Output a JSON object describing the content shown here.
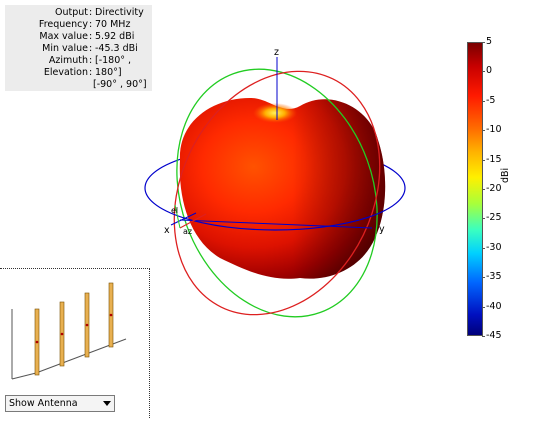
{
  "info": {
    "rows": [
      {
        "key": "Output",
        "value": "Directivity"
      },
      {
        "key": "Frequency",
        "value": "70 MHz"
      },
      {
        "key": "Max value",
        "value": "5.92 dBi"
      },
      {
        "key": "Min value",
        "value": "-45.3 dBi"
      },
      {
        "key": "Azimuth",
        "value": "[-180° ,"
      },
      {
        "key": "Elevation",
        "value": "180°]"
      }
    ],
    "continuation": "[-90° , 90°]"
  },
  "axes": {
    "x": "x",
    "y": "y",
    "z": "z",
    "az": "az",
    "el": "el"
  },
  "colorbar": {
    "unit": "dBi",
    "ticks": [
      "5",
      "0",
      "-5",
      "-10",
      "-15",
      "-20",
      "-25",
      "-30",
      "-35",
      "-40",
      "-45"
    ],
    "range": [
      -45,
      5
    ]
  },
  "antenna_view": {
    "dropdown_value": "Show Antenna"
  },
  "colors": {
    "pattern_max": "#ff2a00",
    "pattern_shadow": "#7a0000",
    "azimuth_ring": "#0000cc",
    "elevation_ring_green": "#22cc22",
    "elevation_ring_red": "#dd2020"
  }
}
